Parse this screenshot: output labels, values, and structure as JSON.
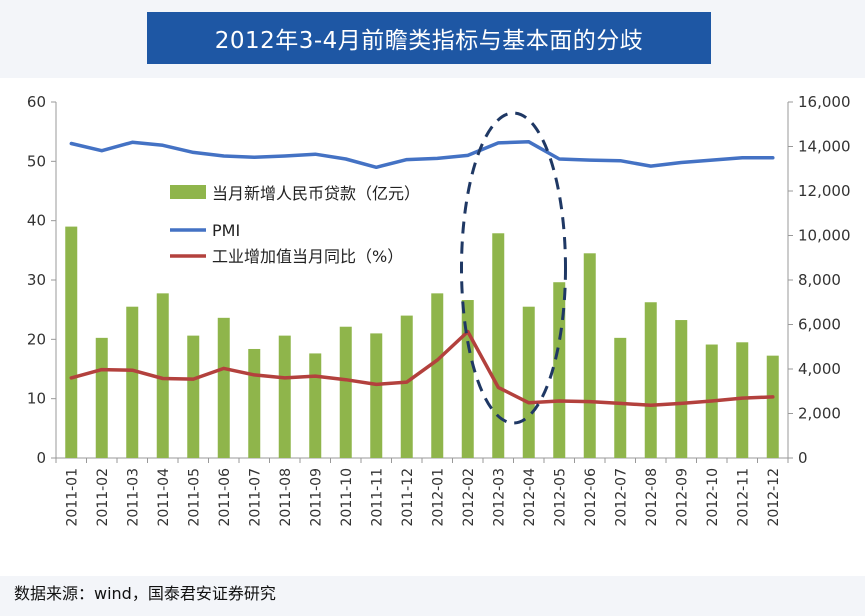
{
  "header": {
    "title": "2012年3-4月前瞻类指标与基本面的分歧"
  },
  "footer": {
    "source": "数据来源：wind，国泰君安证券研究"
  },
  "colors": {
    "title_bg": "#1e57a4",
    "bar": "#8fb54b",
    "pmi_line": "#4472c4",
    "ip_line": "#b3413d",
    "highlight_ellipse": "#1f3864"
  },
  "chart_data": {
    "type": "bar",
    "title": "",
    "categories": [
      "2011-01",
      "2011-02",
      "2011-03",
      "2011-04",
      "2011-05",
      "2011-06",
      "2011-07",
      "2011-08",
      "2011-09",
      "2011-10",
      "2011-11",
      "2011-12",
      "2012-01",
      "2012-02",
      "2012-03",
      "2012-04",
      "2012-05",
      "2012-06",
      "2012-07",
      "2012-08",
      "2012-09",
      "2012-10",
      "2012-11",
      "2012-12"
    ],
    "series": [
      {
        "name": "当月新增人民币贷款（亿元）",
        "type": "bar",
        "axis": "right",
        "values": [
          10400,
          5400,
          6800,
          7400,
          5500,
          6300,
          4900,
          5500,
          4700,
          5900,
          5600,
          6400,
          7400,
          7100,
          10100,
          6800,
          7900,
          9200,
          5400,
          7000,
          6200,
          5100,
          5200,
          4600
        ]
      },
      {
        "name": "PMI",
        "type": "line",
        "axis": "left",
        "values": [
          53.0,
          51.8,
          53.2,
          52.7,
          51.5,
          50.9,
          50.7,
          50.9,
          51.2,
          50.4,
          49.0,
          50.3,
          50.5,
          51.0,
          53.1,
          53.3,
          50.4,
          50.2,
          50.1,
          49.2,
          49.8,
          50.2,
          50.6,
          50.6
        ]
      },
      {
        "name": "工业增加值当月同比（%）",
        "type": "line",
        "axis": "left",
        "values": [
          13.5,
          14.9,
          14.8,
          13.4,
          13.3,
          15.1,
          14.0,
          13.5,
          13.8,
          13.2,
          12.4,
          12.8,
          16.5,
          21.3,
          11.9,
          9.3,
          9.6,
          9.5,
          9.2,
          8.9,
          9.2,
          9.6,
          10.1,
          10.3
        ]
      }
    ],
    "y_left": {
      "min": 0,
      "max": 60,
      "ticks": [
        "0",
        "10",
        "20",
        "30",
        "40",
        "50",
        "60"
      ]
    },
    "y_right": {
      "min": 0,
      "max": 16000,
      "ticks": [
        "0",
        "2,000",
        "4,000",
        "6,000",
        "8,000",
        "10,000",
        "12,000",
        "14,000",
        "16,000"
      ]
    },
    "xlabel": "",
    "ylabel": "",
    "grid": false,
    "legend_position": "upper-left-inside",
    "annotation": "dashed ellipse highlighting 2012-03 to 2012-04"
  }
}
